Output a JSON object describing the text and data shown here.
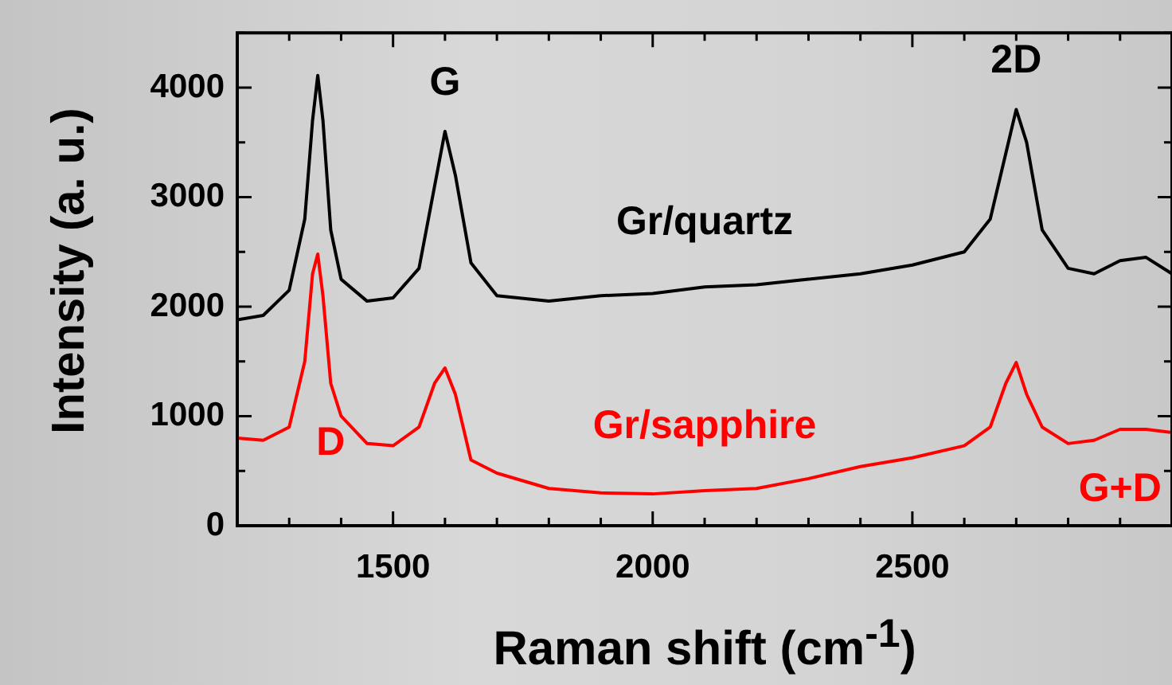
{
  "chart_data": {
    "type": "line",
    "xlabel": "Raman shift (cm$^{-1}$)",
    "ylabel": "Intensity (a. u.)",
    "xlim": [
      1200,
      3000
    ],
    "ylim": [
      0,
      4500
    ],
    "xticks": [
      {
        "value": 1300,
        "label": null
      },
      {
        "value": 1400,
        "label": null
      },
      1500,
      {
        "value": 1600,
        "label": null
      },
      {
        "value": 1700,
        "label": null
      },
      {
        "value": 1800,
        "label": null
      },
      {
        "value": 1900,
        "label": null
      },
      2000,
      {
        "value": 2100,
        "label": null
      },
      {
        "value": 2200,
        "label": null
      },
      {
        "value": 2300,
        "label": null
      },
      {
        "value": 2400,
        "label": null
      },
      2500,
      {
        "value": 2600,
        "label": null
      },
      {
        "value": 2700,
        "label": null
      },
      {
        "value": 2800,
        "label": null
      },
      {
        "value": 2900,
        "label": null
      }
    ],
    "yticks": [
      0,
      {
        "value": 500,
        "label": null
      },
      1000,
      {
        "value": 1500,
        "label": null
      },
      2000,
      {
        "value": 2500,
        "label": null
      },
      3000,
      {
        "value": 3500,
        "label": null
      },
      4000,
      {
        "value": 4500,
        "label": null
      }
    ],
    "x": [
      1200,
      1250,
      1300,
      1330,
      1345,
      1355,
      1365,
      1380,
      1400,
      1450,
      1500,
      1550,
      1580,
      1600,
      1620,
      1650,
      1700,
      1800,
      1900,
      2000,
      2100,
      2200,
      2300,
      2400,
      2500,
      2600,
      2650,
      2680,
      2700,
      2720,
      2750,
      2800,
      2850,
      2900,
      2950,
      3000
    ],
    "series": [
      {
        "name": "Gr/quartz",
        "color": "#000000",
        "values": [
          1880,
          1920,
          2150,
          2800,
          3700,
          4110,
          3700,
          2700,
          2250,
          2050,
          2080,
          2350,
          3100,
          3600,
          3200,
          2400,
          2100,
          2050,
          2100,
          2120,
          2180,
          2200,
          2250,
          2300,
          2380,
          2500,
          2800,
          3400,
          3800,
          3500,
          2700,
          2350,
          2300,
          2420,
          2450,
          2300
        ]
      },
      {
        "name": "Gr/sapphire",
        "color": "#ff0000",
        "values": [
          800,
          780,
          900,
          1500,
          2300,
          2480,
          2100,
          1300,
          1000,
          750,
          730,
          900,
          1300,
          1440,
          1200,
          600,
          480,
          340,
          300,
          290,
          320,
          340,
          430,
          540,
          620,
          730,
          900,
          1300,
          1490,
          1200,
          900,
          750,
          780,
          880,
          880,
          850
        ]
      }
    ],
    "annotations": [
      {
        "text": "D",
        "x": 1380,
        "y": 1300
      },
      {
        "text": "G",
        "x": 1600,
        "y": 3600
      },
      {
        "text": "2D",
        "x": 2700,
        "y": 3800
      },
      {
        "text": "G+D",
        "x": 2900,
        "y": 880
      }
    ],
    "grid": false,
    "legend": false,
    "marker": "none",
    "line_style": "solid"
  }
}
